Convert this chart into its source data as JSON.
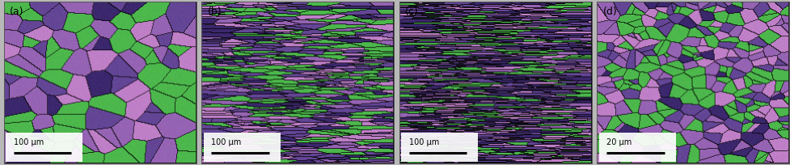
{
  "panels": [
    "(a)",
    "(b)",
    "(c)",
    "(d)"
  ],
  "scale_bars": [
    "100 μm",
    "100 μm",
    "100 μm",
    "20 μm"
  ],
  "green_color": [
    77,
    184,
    77
  ],
  "purple_light": [
    192,
    128,
    200
  ],
  "purple_mid": [
    150,
    100,
    180
  ],
  "purple_dark": [
    100,
    70,
    150
  ],
  "purple_very_dark": [
    60,
    40,
    110
  ],
  "boundary_color": [
    20,
    20,
    20
  ],
  "white_color": [
    255,
    255,
    255
  ],
  "fig_bg": "#b8b8b8",
  "label_fontsize": 9,
  "scalebar_fontsize": 7,
  "figsize": [
    9.78,
    2.04
  ],
  "dpi": 100
}
